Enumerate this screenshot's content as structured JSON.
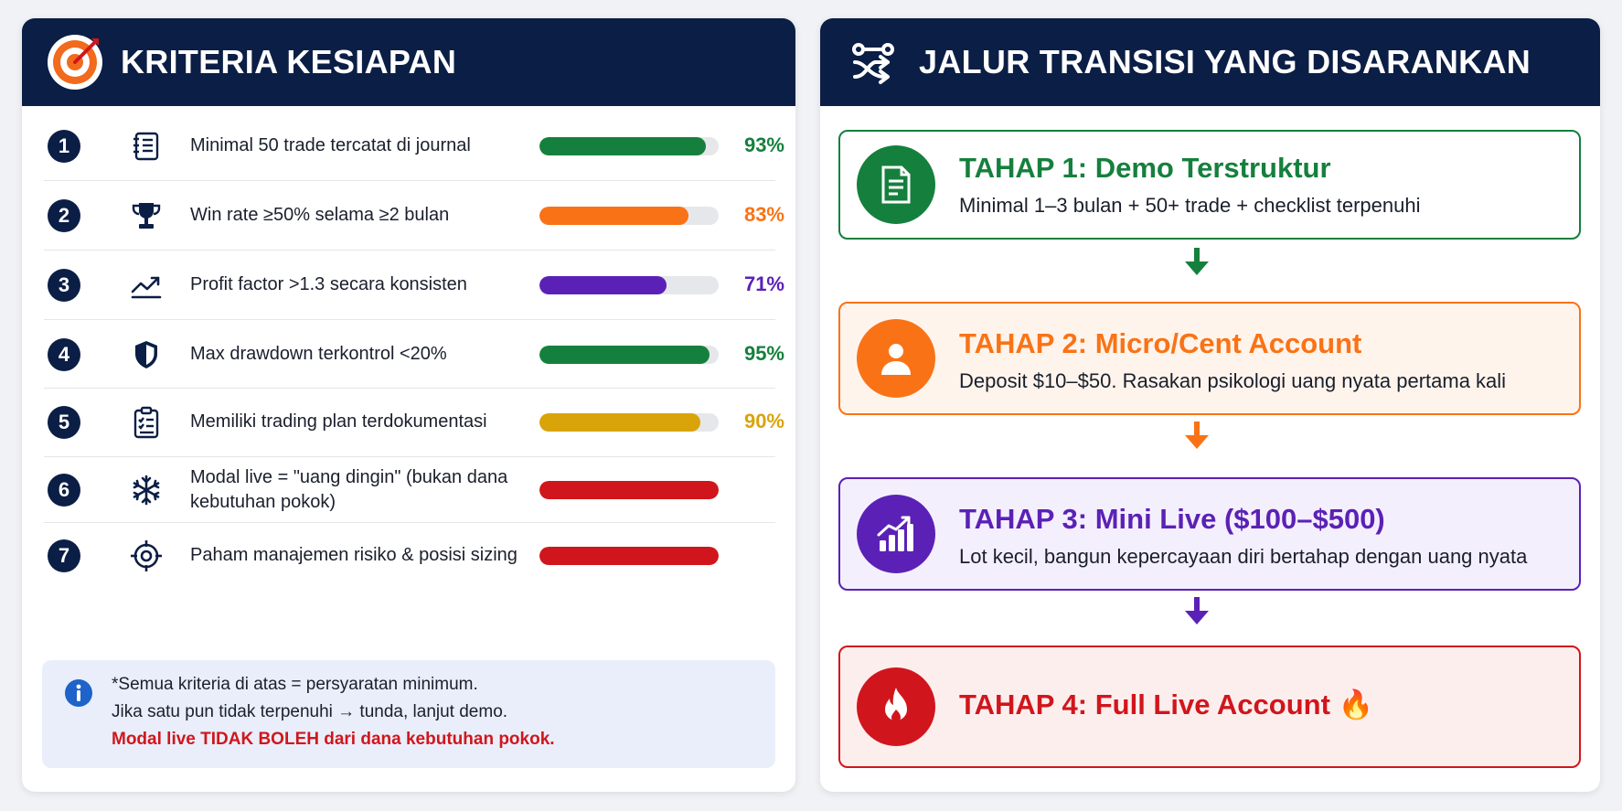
{
  "left": {
    "title": "KRITERIA KESIAPAN",
    "criteria": [
      {
        "num": "1",
        "label": "Minimal 50 trade tercatat di journal",
        "percent": 93,
        "percent_label": "93%",
        "color": "#15803d",
        "icon": "journal-icon"
      },
      {
        "num": "2",
        "label": "Win rate ≥50% selama ≥2 bulan",
        "percent": 83,
        "percent_label": "83%",
        "color": "#f97316",
        "icon": "trophy-icon"
      },
      {
        "num": "3",
        "label": "Profit factor >1.3 secara konsisten",
        "percent": 71,
        "percent_label": "71%",
        "color": "#5b21b6",
        "icon": "trend-up-icon"
      },
      {
        "num": "4",
        "label": "Max drawdown terkontrol <20%",
        "percent": 95,
        "percent_label": "95%",
        "color": "#15803d",
        "icon": "shield-icon"
      },
      {
        "num": "5",
        "label": "Memiliki trading plan terdokumentasi",
        "percent": 90,
        "percent_label": "90%",
        "color": "#d9a40a",
        "icon": "clipboard-icon"
      },
      {
        "num": "6",
        "label": "Modal live = \"uang dingin\" (bukan dana kebutuhan pokok)",
        "percent": 100,
        "percent_label": "",
        "color": "#d0161c",
        "icon": "snowflake-icon"
      },
      {
        "num": "7",
        "label": "Paham manajemen risiko & posisi sizing",
        "percent": 100,
        "percent_label": "",
        "color": "#d0161c",
        "icon": "crosshair-icon"
      }
    ],
    "info": {
      "line1": "*Semua kriteria di atas = persyaratan minimum.",
      "line2": "Jika satu pun tidak terpenuhi → tunda, lanjut demo.",
      "line3": "Modal live TIDAK BOLEH dari dana kebutuhan pokok."
    }
  },
  "right": {
    "title": "JALUR TRANSISI YANG DISARANKAN",
    "stages": [
      {
        "title": "TAHAP 1: Demo Terstruktur",
        "desc": "Minimal 1–3 bulan + 50+ trade + checklist terpenuhi",
        "color": "#15803d",
        "bg": "#ffffff",
        "icon": "document-icon"
      },
      {
        "title": "TAHAP 2: Micro/Cent Account",
        "desc": "Deposit $10–$50. Rasakan psikologi uang nyata pertama kali",
        "color": "#f97316",
        "bg": "#fff4ec",
        "icon": "user-icon"
      },
      {
        "title": "TAHAP 3: Mini Live ($100–$500)",
        "desc": "Lot kecil, bangun kepercayaan diri bertahap dengan uang nyata",
        "color": "#5b21b6",
        "bg": "#f4effd",
        "icon": "chart-growth-icon"
      },
      {
        "title": "TAHAP 4: Full Live Account 🔥",
        "desc": "",
        "color": "#d0161c",
        "bg": "#fdeeee",
        "icon": "fire-icon"
      }
    ]
  }
}
